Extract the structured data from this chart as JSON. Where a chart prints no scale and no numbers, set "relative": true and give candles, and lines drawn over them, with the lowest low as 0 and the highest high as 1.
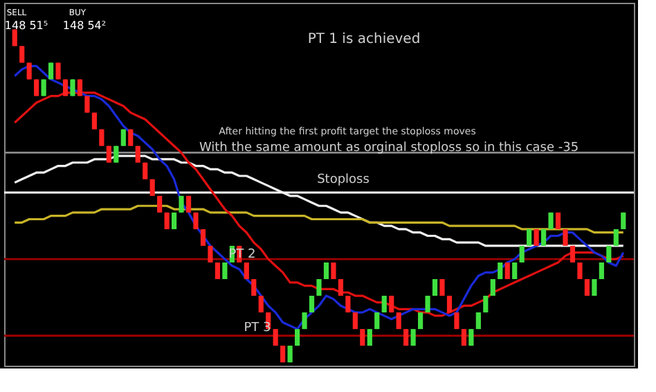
{
  "chart_data": {
    "type": "candlestick",
    "relative": true,
    "categories": [
      null,
      null,
      null,
      null,
      null,
      null,
      null,
      null,
      null,
      null,
      null,
      null,
      null,
      null,
      null,
      null,
      null,
      null,
      null,
      null,
      null,
      null,
      null,
      null,
      null,
      null,
      null,
      null,
      null,
      null,
      null,
      null,
      null,
      null,
      null,
      null,
      null,
      null,
      null,
      null,
      null,
      null,
      null,
      null,
      null,
      null,
      null,
      null,
      null,
      null,
      null,
      null,
      null,
      null,
      null,
      null,
      null,
      null,
      null,
      null,
      null,
      null,
      null,
      null,
      null,
      null,
      null,
      null,
      null,
      null,
      null,
      null,
      null,
      null,
      null,
      null,
      null,
      null,
      null,
      null,
      null,
      null,
      null,
      null,
      null
    ],
    "ohlc": [
      [
        1,
        1,
        0.95,
        0.95
      ],
      [
        0.95,
        0.95,
        0.9,
        0.9
      ],
      [
        0.9,
        0.9,
        0.85,
        0.85
      ],
      [
        0.85,
        0.85,
        0.8,
        0.8
      ],
      [
        0.8,
        0.85,
        0.8,
        0.85
      ],
      [
        0.85,
        0.9,
        0.85,
        0.9
      ],
      [
        0.9,
        0.9,
        0.85,
        0.85
      ],
      [
        0.85,
        0.85,
        0.8,
        0.8
      ],
      [
        0.8,
        0.85,
        0.8,
        0.85
      ],
      [
        0.85,
        0.85,
        0.8,
        0.8
      ],
      [
        0.8,
        0.8,
        0.75,
        0.75
      ],
      [
        0.75,
        0.75,
        0.7,
        0.7
      ],
      [
        0.7,
        0.7,
        0.65,
        0.65
      ],
      [
        0.65,
        0.65,
        0.6,
        0.6
      ],
      [
        0.6,
        0.65,
        0.6,
        0.65
      ],
      [
        0.65,
        0.7,
        0.65,
        0.7
      ],
      [
        0.7,
        0.7,
        0.65,
        0.65
      ],
      [
        0.65,
        0.65,
        0.6,
        0.6
      ],
      [
        0.6,
        0.6,
        0.55,
        0.55
      ],
      [
        0.55,
        0.55,
        0.5,
        0.5
      ],
      [
        0.5,
        0.5,
        0.45,
        0.45
      ],
      [
        0.45,
        0.45,
        0.4,
        0.4
      ],
      [
        0.4,
        0.45,
        0.4,
        0.45
      ],
      [
        0.45,
        0.5,
        0.45,
        0.5
      ],
      [
        0.5,
        0.5,
        0.45,
        0.45
      ],
      [
        0.45,
        0.45,
        0.4,
        0.4
      ],
      [
        0.4,
        0.4,
        0.35,
        0.35
      ],
      [
        0.35,
        0.35,
        0.3,
        0.3
      ],
      [
        0.3,
        0.3,
        0.25,
        0.25
      ],
      [
        0.25,
        0.3,
        0.25,
        0.3
      ],
      [
        0.3,
        0.35,
        0.3,
        0.35
      ],
      [
        0.35,
        0.35,
        0.3,
        0.3
      ],
      [
        0.3,
        0.3,
        0.25,
        0.25
      ],
      [
        0.25,
        0.25,
        0.2,
        0.2
      ],
      [
        0.2,
        0.2,
        0.15,
        0.15
      ],
      [
        0.15,
        0.15,
        0.1,
        0.1
      ],
      [
        0.1,
        0.1,
        0.05,
        0.05
      ],
      [
        0.05,
        0.05,
        0,
        0
      ],
      [
        0,
        0.05,
        0,
        0.05
      ],
      [
        0.05,
        0.1,
        0.05,
        0.1
      ],
      [
        0.1,
        0.15,
        0.1,
        0.15
      ],
      [
        0.15,
        0.2,
        0.15,
        0.2
      ],
      [
        0.2,
        0.25,
        0.2,
        0.25
      ],
      [
        0.25,
        0.3,
        0.25,
        0.3
      ],
      [
        0.3,
        0.3,
        0.25,
        0.25
      ],
      [
        0.25,
        0.25,
        0.2,
        0.2
      ],
      [
        0.2,
        0.2,
        0.15,
        0.15
      ],
      [
        0.15,
        0.15,
        0.1,
        0.1
      ],
      [
        0.1,
        0.1,
        0.05,
        0.05
      ],
      [
        0.05,
        0.1,
        0.05,
        0.1
      ],
      [
        0.1,
        0.15,
        0.1,
        0.15
      ],
      [
        0.15,
        0.2,
        0.15,
        0.2
      ],
      [
        0.2,
        0.2,
        0.15,
        0.15
      ],
      [
        0.15,
        0.15,
        0.1,
        0.1
      ],
      [
        0.1,
        0.1,
        0.05,
        0.05
      ],
      [
        0.05,
        0.1,
        0.05,
        0.1
      ],
      [
        0.1,
        0.15,
        0.1,
        0.15
      ],
      [
        0.15,
        0.2,
        0.15,
        0.2
      ],
      [
        0.2,
        0.25,
        0.2,
        0.25
      ],
      [
        0.25,
        0.25,
        0.2,
        0.2
      ],
      [
        0.2,
        0.2,
        0.15,
        0.15
      ],
      [
        0.15,
        0.15,
        0.1,
        0.1
      ],
      [
        0.1,
        0.1,
        0.05,
        0.05
      ],
      [
        0.05,
        0.1,
        0.05,
        0.1
      ],
      [
        0.1,
        0.15,
        0.1,
        0.15
      ],
      [
        0.15,
        0.2,
        0.15,
        0.2
      ],
      [
        0.2,
        0.25,
        0.2,
        0.25
      ],
      [
        0.25,
        0.3,
        0.25,
        0.3
      ],
      [
        0.3,
        0.3,
        0.25,
        0.25
      ],
      [
        0.25,
        0.3,
        0.25,
        0.3
      ],
      [
        0.3,
        0.35,
        0.3,
        0.35
      ],
      [
        0.35,
        0.4,
        0.35,
        0.4
      ],
      [
        0.4,
        0.4,
        0.35,
        0.35
      ],
      [
        0.35,
        0.4,
        0.35,
        0.4
      ],
      [
        0.4,
        0.45,
        0.4,
        0.45
      ],
      [
        0.45,
        0.45,
        0.4,
        0.4
      ],
      [
        0.4,
        0.4,
        0.35,
        0.35
      ],
      [
        0.35,
        0.35,
        0.3,
        0.3
      ],
      [
        0.3,
        0.3,
        0.25,
        0.25
      ],
      [
        0.25,
        0.25,
        0.2,
        0.2
      ],
      [
        0.2,
        0.25,
        0.2,
        0.25
      ],
      [
        0.25,
        0.3,
        0.25,
        0.3
      ],
      [
        0.3,
        0.35,
        0.3,
        0.35
      ],
      [
        0.35,
        0.4,
        0.35,
        0.4
      ],
      [
        0.4,
        0.45,
        0.4,
        0.45
      ]
    ],
    "colors": [
      "#ff2020",
      "#ff2020",
      "#ff2020",
      "#ff2020",
      "#40e040",
      "#40e040",
      "#ff2020",
      "#ff2020",
      "#40e040",
      "#ff2020",
      "#ff2020",
      "#ff2020",
      "#ff2020",
      "#ff2020",
      "#40e040",
      "#40e040",
      "#ff2020",
      "#ff2020",
      "#ff2020",
      "#ff2020",
      "#ff2020",
      "#ff2020",
      "#40e040",
      "#40e040",
      "#ff2020",
      "#ff2020",
      "#ff2020",
      "#ff2020",
      "#ff2020",
      "#40e040",
      "#40e040",
      "#ff2020",
      "#ff2020",
      "#ff2020",
      "#ff2020",
      "#ff2020",
      "#ff2020",
      "#ff2020",
      "#40e040",
      "#40e040",
      "#40e040",
      "#40e040",
      "#40e040",
      "#40e040",
      "#ff2020",
      "#ff2020",
      "#ff2020",
      "#ff2020",
      "#ff2020",
      "#40e040",
      "#40e040",
      "#40e040",
      "#ff2020",
      "#ff2020",
      "#ff2020",
      "#40e040",
      "#40e040",
      "#40e040",
      "#40e040",
      "#ff2020",
      "#ff2020",
      "#ff2020",
      "#ff2020",
      "#40e040",
      "#40e040",
      "#40e040",
      "#40e040",
      "#40e040",
      "#ff2020",
      "#40e040",
      "#40e040",
      "#40e040",
      "#ff2020",
      "#40e040",
      "#40e040",
      "#ff2020",
      "#ff2020",
      "#ff2020",
      "#ff2020",
      "#ff2020",
      "#40e040",
      "#40e040",
      "#40e040",
      "#40e040",
      "#40e040"
    ],
    "series": [
      {
        "type": "line",
        "color": "#f0f0f0",
        "values": [
          0.54,
          0.55,
          0.56,
          0.57,
          0.57,
          0.58,
          0.59,
          0.59,
          0.6,
          0.6,
          0.6,
          0.61,
          0.61,
          0.61,
          0.62,
          0.62,
          0.62,
          0.62,
          0.62,
          0.61,
          0.61,
          0.61,
          0.61,
          0.6,
          0.6,
          0.59,
          0.59,
          0.58,
          0.58,
          0.57,
          0.57,
          0.56,
          0.56,
          0.55,
          0.54,
          0.53,
          0.52,
          0.51,
          0.5,
          0.5,
          0.49,
          0.48,
          0.47,
          0.47,
          0.46,
          0.45,
          0.45,
          0.44,
          0.43,
          0.42,
          0.42,
          0.41,
          0.41,
          0.4,
          0.4,
          0.39,
          0.39,
          0.38,
          0.38,
          0.37,
          0.37,
          0.36,
          0.36,
          0.36,
          0.36,
          0.35,
          0.35,
          0.35,
          0.35,
          0.35,
          0.35,
          0.35,
          0.35,
          0.35,
          0.35,
          0.35,
          0.35,
          0.35,
          0.35,
          0.35,
          0.35,
          0.35,
          0.35,
          0.35,
          0.35
        ]
      },
      {
        "type": "line",
        "color": "#c8b428",
        "values": [
          0.42,
          0.42,
          0.43,
          0.43,
          0.43,
          0.44,
          0.44,
          0.44,
          0.45,
          0.45,
          0.45,
          0.45,
          0.46,
          0.46,
          0.46,
          0.46,
          0.46,
          0.47,
          0.47,
          0.47,
          0.47,
          0.47,
          0.46,
          0.46,
          0.46,
          0.46,
          0.46,
          0.45,
          0.45,
          0.45,
          0.45,
          0.45,
          0.45,
          0.44,
          0.44,
          0.44,
          0.44,
          0.44,
          0.44,
          0.44,
          0.44,
          0.43,
          0.43,
          0.43,
          0.43,
          0.43,
          0.43,
          0.43,
          0.43,
          0.42,
          0.42,
          0.42,
          0.42,
          0.42,
          0.42,
          0.42,
          0.42,
          0.42,
          0.42,
          0.42,
          0.41,
          0.41,
          0.41,
          0.41,
          0.41,
          0.41,
          0.41,
          0.41,
          0.41,
          0.41,
          0.4,
          0.4,
          0.4,
          0.4,
          0.4,
          0.4,
          0.4,
          0.4,
          0.4,
          0.4,
          0.39,
          0.39,
          0.39,
          0.39,
          0.39
        ]
      },
      {
        "type": "line",
        "color": "#e01010",
        "values": [
          0.72,
          0.74,
          0.76,
          0.78,
          0.79,
          0.8,
          0.8,
          0.81,
          0.81,
          0.81,
          0.81,
          0.81,
          0.8,
          0.79,
          0.78,
          0.77,
          0.75,
          0.74,
          0.73,
          0.71,
          0.69,
          0.67,
          0.65,
          0.63,
          0.6,
          0.58,
          0.55,
          0.52,
          0.49,
          0.46,
          0.44,
          0.41,
          0.39,
          0.36,
          0.34,
          0.31,
          0.29,
          0.27,
          0.24,
          0.24,
          0.23,
          0.23,
          0.22,
          0.22,
          0.22,
          0.21,
          0.21,
          0.2,
          0.2,
          0.19,
          0.18,
          0.18,
          0.17,
          0.16,
          0.16,
          0.16,
          0.15,
          0.15,
          0.14,
          0.14,
          0.15,
          0.16,
          0.17,
          0.17,
          0.18,
          0.19,
          0.21,
          0.22,
          0.23,
          0.24,
          0.25,
          0.26,
          0.27,
          0.28,
          0.29,
          0.3,
          0.32,
          0.33,
          0.33,
          0.33,
          0.33,
          0.32,
          0.31,
          0.31,
          0.32
        ]
      },
      {
        "type": "line",
        "color": "#1a2ad8",
        "values": [
          0.86,
          0.88,
          0.89,
          0.89,
          0.87,
          0.85,
          0.84,
          0.83,
          0.82,
          0.81,
          0.8,
          0.8,
          0.79,
          0.77,
          0.74,
          0.71,
          0.69,
          0.68,
          0.66,
          0.64,
          0.61,
          0.59,
          0.55,
          0.48,
          0.45,
          0.41,
          0.38,
          0.35,
          0.33,
          0.31,
          0.29,
          0.28,
          0.25,
          0.23,
          0.2,
          0.17,
          0.15,
          0.12,
          0.11,
          0.1,
          0.13,
          0.15,
          0.17,
          0.2,
          0.19,
          0.17,
          0.16,
          0.15,
          0.15,
          0.16,
          0.15,
          0.14,
          0.13,
          0.14,
          0.15,
          0.16,
          0.16,
          0.16,
          0.16,
          0.15,
          0.14,
          0.15,
          0.19,
          0.23,
          0.26,
          0.27,
          0.27,
          0.28,
          0.3,
          0.31,
          0.33,
          0.34,
          0.35,
          0.36,
          0.38,
          0.38,
          0.39,
          0.39,
          0.37,
          0.35,
          0.33,
          0.32,
          0.3,
          0.29,
          0.33
        ]
      }
    ],
    "ref_lines": [
      {
        "axis": "y",
        "value": 0.63,
        "color": "#8a8a8a"
      },
      {
        "axis": "y",
        "value": 0.51,
        "color": "#ffffff"
      },
      {
        "axis": "y",
        "value": 0.31,
        "color": "#a00000"
      },
      {
        "axis": "y",
        "value": 0.08,
        "color": "#a00000"
      }
    ],
    "annotations": [
      "PT 1 is achieved",
      "After hitting the first profit target the stoploss moves",
      "With the same amount as orginal stoploss so in this case -35",
      "SELL",
      "BUY",
      "148 51⁵",
      "148 54²",
      "Stoploss",
      "PT 2",
      "PT 3"
    ]
  }
}
